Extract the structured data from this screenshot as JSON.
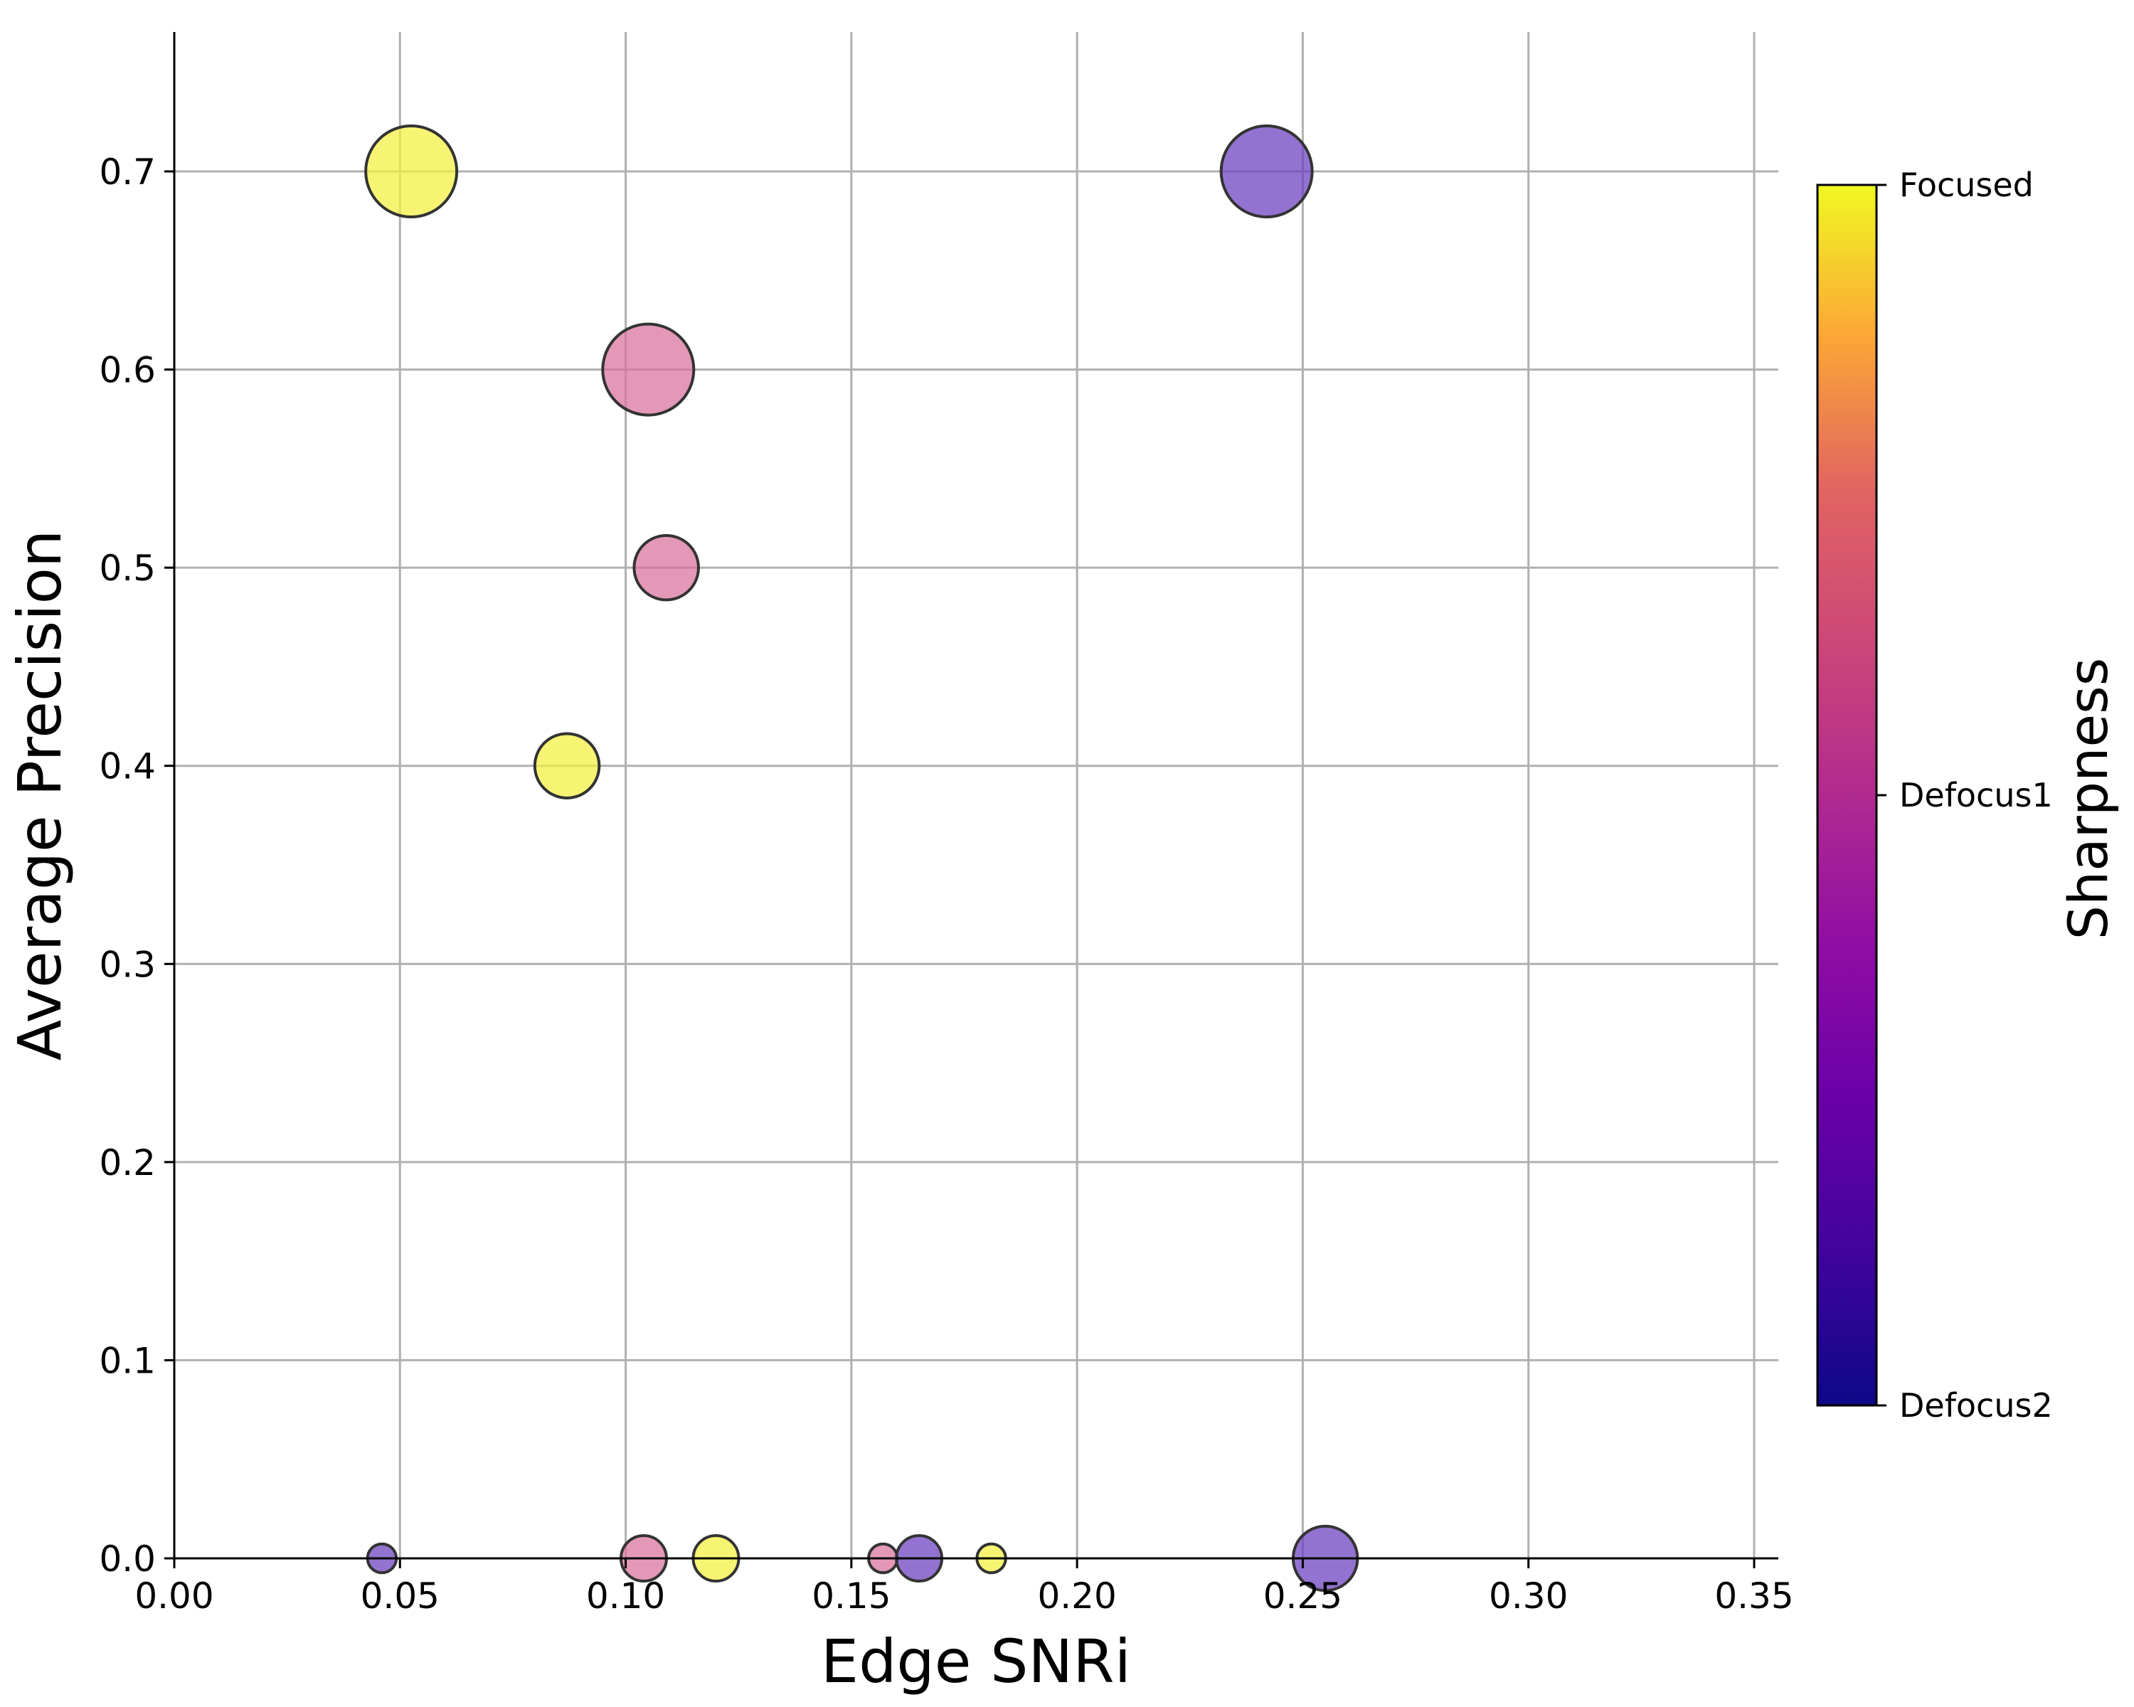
{
  "chart_data": {
    "type": "scatter",
    "xlabel": "Edge SNRi",
    "ylabel": "Average Precision",
    "xlim": [
      0.0,
      0.355
    ],
    "ylim": [
      0.0,
      0.77
    ],
    "x_ticks": [
      "0.00",
      "0.05",
      "0.10",
      "0.15",
      "0.20",
      "0.25",
      "0.30",
      "0.35"
    ],
    "x_tick_values": [
      0.0,
      0.05,
      0.1,
      0.15,
      0.2,
      0.25,
      0.3,
      0.35
    ],
    "y_ticks": [
      "0.0",
      "0.1",
      "0.2",
      "0.3",
      "0.4",
      "0.5",
      "0.6",
      "0.7"
    ],
    "y_tick_values": [
      0.0,
      0.1,
      0.2,
      0.3,
      0.4,
      0.5,
      0.6,
      0.7
    ],
    "grid": true,
    "colormap": "plasma",
    "colorbar": {
      "title": "Sharpness",
      "ticks": [
        {
          "label": "Focused",
          "value": 2
        },
        {
          "label": "Defocus1",
          "value": 1
        },
        {
          "label": "Defocus2",
          "value": 0
        }
      ]
    },
    "points": [
      {
        "x": 0.0525,
        "y": 0.7,
        "size": 4,
        "color": "#f2f03c",
        "sharpness": "Focused"
      },
      {
        "x": 0.242,
        "y": 0.7,
        "size": 4,
        "color": "#6a3dbf",
        "sharpness": "Defocus2"
      },
      {
        "x": 0.105,
        "y": 0.6,
        "size": 4,
        "color": "#d9709c",
        "sharpness": "Defocus1"
      },
      {
        "x": 0.109,
        "y": 0.5,
        "size": 2,
        "color": "#d9709c",
        "sharpness": "Defocus1"
      },
      {
        "x": 0.087,
        "y": 0.4,
        "size": 2,
        "color": "#f2f03c",
        "sharpness": "Focused"
      },
      {
        "x": 0.255,
        "y": 0.0,
        "size": 2,
        "color": "#6a3dbf",
        "sharpness": "Defocus2"
      },
      {
        "x": 0.046,
        "y": 0.0,
        "size": 0.4,
        "color": "#6a3dbf",
        "sharpness": "Defocus2"
      },
      {
        "x": 0.104,
        "y": 0.0,
        "size": 1,
        "color": "#d9709c",
        "sharpness": "Defocus1"
      },
      {
        "x": 0.12,
        "y": 0.0,
        "size": 1,
        "color": "#f2f03c",
        "sharpness": "Focused"
      },
      {
        "x": 0.157,
        "y": 0.0,
        "size": 0.4,
        "color": "#d9709c",
        "sharpness": "Defocus1"
      },
      {
        "x": 0.165,
        "y": 0.0,
        "size": 1,
        "color": "#6a3dbf",
        "sharpness": "Defocus2"
      },
      {
        "x": 0.181,
        "y": 0.0,
        "size": 0.4,
        "color": "#f2f03c",
        "sharpness": "Focused"
      }
    ]
  }
}
